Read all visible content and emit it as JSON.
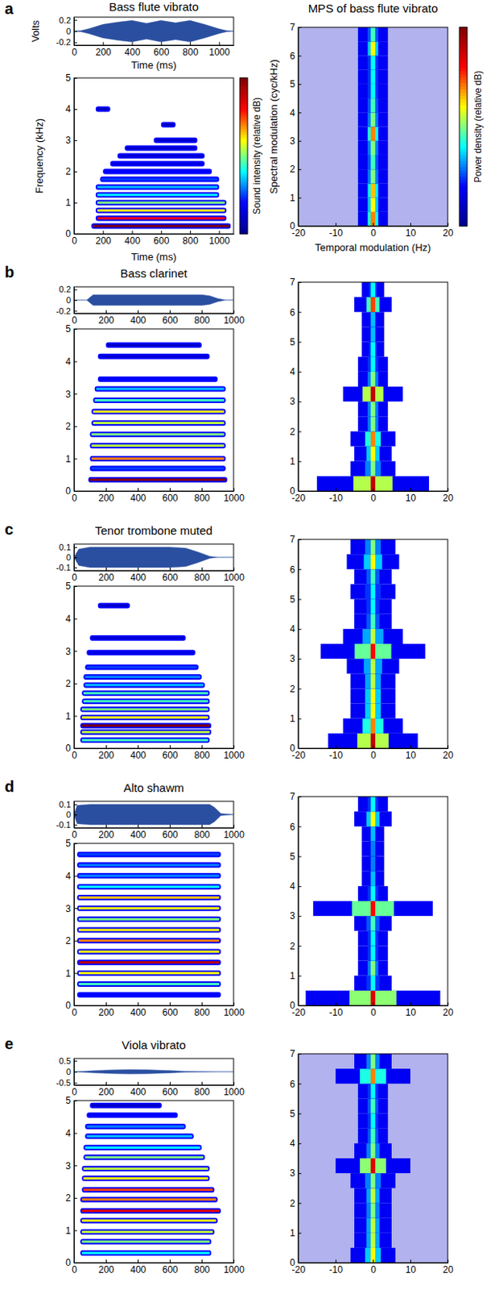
{
  "chart_data": [
    {
      "type": "waveform_spectrogram_mps",
      "letter": "a",
      "title": "Bass flute vibrato",
      "waveform": {
        "x": [
          0,
          50,
          100,
          200,
          300,
          400,
          500,
          600,
          700,
          800,
          900,
          1000,
          1050,
          1100
        ],
        "envelope": [
          0,
          0.01,
          0.04,
          0.12,
          0.16,
          0.19,
          0.14,
          0.19,
          0.15,
          0.19,
          0.12,
          0.04,
          0.01,
          0
        ],
        "xlim": [
          0,
          1100
        ],
        "xticks": [
          0,
          200,
          400,
          600,
          800,
          1000
        ],
        "ylim": [
          -0.25,
          0.25
        ],
        "yticks": [
          -0.2,
          0,
          0.2
        ],
        "ylabel": "Volts",
        "xlabel": "Time (ms)"
      },
      "spectrogram": {
        "xlim": [
          0,
          1100
        ],
        "xticks": [
          0,
          200,
          400,
          600,
          800,
          1000
        ],
        "ylim": [
          0,
          5
        ],
        "yticks": [
          0,
          1,
          2,
          3,
          4,
          5
        ],
        "ylabel": "Frequency (kHz)",
        "xlabel": "Time (ms)",
        "colorbar_label": "Sound intensity (relative dB)",
        "clim": [
          0,
          1
        ],
        "harmonics": {
          "freq": [
            0.25,
            0.5,
            0.75,
            1.0,
            1.25,
            1.5,
            1.75,
            2.0,
            2.25,
            2.5,
            2.75,
            3.0,
            3.5,
            4.0
          ],
          "start": [
            120,
            150,
            150,
            150,
            150,
            150,
            180,
            200,
            250,
            300,
            350,
            550,
            600,
            150
          ],
          "end": [
            1080,
            1050,
            1050,
            1050,
            1000,
            1000,
            1000,
            950,
            900,
            900,
            850,
            850,
            700,
            250
          ],
          "level": [
            1.0,
            0.8,
            0.6,
            0.5,
            0.4,
            0.35,
            0.25,
            0.2,
            0.15,
            0.12,
            0.1,
            0.1,
            0.08,
            0.08
          ]
        }
      },
      "mps": {
        "title": "MPS of bass flute vibrato",
        "xlim": [
          -20,
          20
        ],
        "xticks": [
          -20,
          -10,
          0,
          10,
          20
        ],
        "ylim": [
          0,
          7
        ],
        "yticks": [
          0,
          1,
          2,
          3,
          4,
          5,
          6,
          7
        ],
        "xlabel": "Temporal modulation (Hz)",
        "ylabel": "Spectral modulation (cyc/kHz)",
        "colorbar_label": "Power density (relative dB)",
        "clim": [
          0,
          1
        ],
        "background": 0.1,
        "spectral": [
          0.25,
          0.75,
          1.25,
          1.75,
          2.25,
          2.75,
          3.25,
          3.75,
          4.25,
          4.75,
          5.25,
          5.75,
          6.25,
          6.75
        ],
        "spread": [
          4,
          4,
          4,
          4,
          4,
          4,
          4,
          4,
          4,
          4,
          4,
          4,
          4,
          4
        ],
        "peak": [
          0.7,
          0.6,
          0.65,
          0.5,
          0.45,
          0.5,
          0.7,
          0.5,
          0.45,
          0.4,
          0.4,
          0.4,
          0.6,
          0.45
        ]
      }
    },
    {
      "type": "waveform_spectrogram_mps",
      "letter": "b",
      "title": "Bass clarinet",
      "waveform": {
        "x": [
          0,
          80,
          120,
          200,
          500,
          800,
          850,
          900,
          950,
          1000
        ],
        "envelope": [
          0,
          0,
          0.1,
          0.1,
          0.1,
          0.1,
          0.08,
          0.03,
          0,
          0
        ],
        "xlim": [
          0,
          1000
        ],
        "xticks": [
          0,
          200,
          400,
          600,
          800,
          1000
        ],
        "ylim": [
          -0.25,
          0.25
        ],
        "yticks": [
          -0.2,
          0,
          0.2
        ]
      },
      "spectrogram": {
        "xlim": [
          0,
          1000
        ],
        "xticks": [
          0,
          200,
          400,
          600,
          800,
          1000
        ],
        "ylim": [
          0,
          5
        ],
        "yticks": [
          0,
          1,
          2,
          3,
          4,
          5
        ],
        "clim": [
          0,
          1
        ],
        "harmonics": {
          "freq": [
            0.35,
            0.7,
            1.0,
            1.4,
            1.75,
            2.1,
            2.45,
            2.8,
            3.15,
            3.45,
            4.15,
            4.5
          ],
          "start": [
            90,
            100,
            100,
            100,
            100,
            110,
            110,
            120,
            130,
            150,
            150,
            200
          ],
          "end": [
            960,
            950,
            950,
            950,
            950,
            950,
            950,
            950,
            950,
            900,
            850,
            800
          ],
          "level": [
            1.0,
            0.25,
            0.7,
            0.55,
            0.5,
            0.55,
            0.6,
            0.45,
            0.35,
            0.2,
            0.12,
            0.1
          ]
        }
      },
      "mps": {
        "xlim": [
          -20,
          20
        ],
        "xticks": [
          -20,
          -10,
          0,
          10,
          20
        ],
        "ylim": [
          0,
          7
        ],
        "yticks": [
          0,
          1,
          2,
          3,
          4,
          5,
          6,
          7
        ],
        "clim": [
          0,
          1
        ],
        "background": 0,
        "spectral": [
          0.25,
          0.75,
          1.25,
          1.75,
          2.25,
          2.75,
          3.25,
          3.75,
          4.25,
          4.75,
          5.25,
          5.75,
          6.25,
          6.75
        ],
        "spread": [
          15,
          6,
          5,
          6,
          4,
          4,
          8,
          4,
          4,
          3,
          3,
          3,
          5,
          3
        ],
        "peak": [
          0.9,
          0.5,
          0.6,
          0.7,
          0.5,
          0.5,
          0.9,
          0.5,
          0.4,
          0.4,
          0.35,
          0.35,
          0.75,
          0.4
        ]
      }
    },
    {
      "type": "waveform_spectrogram_mps",
      "letter": "c",
      "title": "Tenor trombone muted",
      "waveform": {
        "x": [
          0,
          30,
          100,
          400,
          600,
          700,
          780,
          850,
          900,
          1000
        ],
        "envelope": [
          0,
          0.08,
          0.1,
          0.1,
          0.1,
          0.09,
          0.05,
          0.01,
          0,
          0
        ],
        "xlim": [
          0,
          1000
        ],
        "xticks": [
          0,
          200,
          400,
          600,
          800,
          1000
        ],
        "ylim": [
          -0.13,
          0.13
        ],
        "yticks": [
          -0.1,
          0,
          0.1
        ]
      },
      "spectrogram": {
        "xlim": [
          0,
          1000
        ],
        "xticks": [
          0,
          200,
          400,
          600,
          800,
          1000
        ],
        "ylim": [
          0,
          5
        ],
        "yticks": [
          0,
          1,
          2,
          3,
          4,
          5
        ],
        "clim": [
          0,
          1
        ],
        "harmonics": {
          "freq": [
            0.25,
            0.5,
            0.7,
            0.95,
            1.2,
            1.45,
            1.7,
            1.95,
            2.2,
            2.5,
            2.95,
            3.4,
            4.4
          ],
          "start": [
            40,
            40,
            40,
            40,
            40,
            50,
            50,
            60,
            60,
            70,
            80,
            100,
            150
          ],
          "end": [
            850,
            860,
            860,
            850,
            850,
            850,
            850,
            820,
            800,
            780,
            760,
            700,
            350
          ],
          "level": [
            0.45,
            0.55,
            1.0,
            0.6,
            0.5,
            0.45,
            0.45,
            0.35,
            0.3,
            0.25,
            0.15,
            0.12,
            0.1
          ]
        }
      },
      "mps": {
        "xlim": [
          -20,
          20
        ],
        "xticks": [
          -20,
          -10,
          0,
          10,
          20
        ],
        "ylim": [
          0,
          7
        ],
        "yticks": [
          0,
          1,
          2,
          3,
          4,
          5,
          6,
          7
        ],
        "clim": [
          0,
          1
        ],
        "background": 0,
        "spectral": [
          0.25,
          0.75,
          1.25,
          1.75,
          2.25,
          2.75,
          3.25,
          3.75,
          4.25,
          4.75,
          5.25,
          5.75,
          6.25,
          6.75
        ],
        "spread": [
          12,
          8,
          6,
          6,
          6,
          7,
          14,
          8,
          5,
          5,
          6,
          5,
          7,
          6
        ],
        "peak": [
          0.9,
          0.7,
          0.6,
          0.6,
          0.55,
          0.55,
          0.8,
          0.55,
          0.45,
          0.4,
          0.4,
          0.45,
          0.6,
          0.5
        ]
      }
    },
    {
      "type": "waveform_spectrogram_mps",
      "letter": "d",
      "title": "Alto shawm",
      "waveform": {
        "x": [
          0,
          20,
          100,
          500,
          850,
          880,
          920,
          1000
        ],
        "envelope": [
          0,
          0.09,
          0.1,
          0.1,
          0.1,
          0.07,
          0.01,
          0
        ],
        "xlim": [
          0,
          1000
        ],
        "xticks": [
          0,
          200,
          400,
          600,
          800,
          1000
        ],
        "ylim": [
          -0.13,
          0.13
        ],
        "yticks": [
          -0.1,
          0,
          0.1
        ]
      },
      "spectrogram": {
        "xlim": [
          0,
          1000
        ],
        "xticks": [
          0,
          200,
          400,
          600,
          800,
          1000
        ],
        "ylim": [
          0,
          5
        ],
        "yticks": [
          0,
          1,
          2,
          3,
          4,
          5
        ],
        "clim": [
          0,
          1
        ],
        "harmonics": {
          "freq": [
            0.33,
            0.66,
            1.0,
            1.33,
            1.66,
            2.0,
            2.33,
            2.66,
            3.0,
            3.33,
            3.66,
            4.0,
            4.33,
            4.66
          ],
          "start": [
            20,
            20,
            20,
            20,
            20,
            20,
            20,
            20,
            20,
            20,
            20,
            20,
            20,
            20
          ],
          "end": [
            920,
            920,
            920,
            920,
            920,
            920,
            920,
            920,
            920,
            920,
            920,
            920,
            920,
            920
          ],
          "level": [
            0.2,
            0.45,
            0.6,
            0.9,
            0.6,
            0.7,
            0.6,
            0.5,
            0.6,
            0.65,
            0.4,
            0.3,
            0.3,
            0.25
          ]
        }
      },
      "mps": {
        "xlim": [
          -20,
          20
        ],
        "xticks": [
          -20,
          -10,
          0,
          10,
          20
        ],
        "ylim": [
          0,
          7
        ],
        "yticks": [
          0,
          1,
          2,
          3,
          4,
          5,
          6,
          7
        ],
        "clim": [
          0,
          1
        ],
        "background": 0,
        "spectral": [
          0.25,
          0.75,
          1.25,
          1.75,
          2.25,
          2.75,
          3.25,
          3.75,
          4.25,
          4.75,
          5.25,
          5.75,
          6.25,
          6.75
        ],
        "spread": [
          18,
          5,
          4,
          4,
          4,
          5,
          16,
          4,
          3,
          3,
          3,
          3,
          5,
          4
        ],
        "peak": [
          0.85,
          0.4,
          0.5,
          0.4,
          0.4,
          0.45,
          0.8,
          0.4,
          0.35,
          0.3,
          0.3,
          0.35,
          0.6,
          0.4
        ]
      }
    },
    {
      "type": "waveform_spectrogram_mps",
      "letter": "e",
      "title": "Viola vibrato",
      "waveform": {
        "x": [
          0,
          50,
          200,
          350,
          450,
          600,
          700,
          800,
          900,
          1000
        ],
        "envelope": [
          0,
          0.02,
          0.07,
          0.1,
          0.09,
          0.05,
          0.02,
          0.005,
          0,
          0
        ],
        "xlim": [
          0,
          1000
        ],
        "xticks": [
          0,
          200,
          400,
          600,
          800,
          1000
        ],
        "ylim": [
          -0.6,
          0.6
        ],
        "yticks": [
          -0.5,
          0,
          0.5
        ]
      },
      "spectrogram": {
        "xlim": [
          0,
          1000
        ],
        "xticks": [
          0,
          200,
          400,
          600,
          800,
          1000
        ],
        "ylim": [
          0,
          5
        ],
        "yticks": [
          0,
          1,
          2,
          3,
          4,
          5
        ],
        "clim": [
          0,
          1
        ],
        "harmonics": {
          "freq": [
            0.3,
            0.65,
            0.95,
            1.3,
            1.6,
            1.95,
            2.25,
            2.6,
            2.9,
            3.25,
            3.55,
            3.9,
            4.2,
            4.55,
            4.85
          ],
          "start": [
            40,
            40,
            40,
            40,
            40,
            40,
            50,
            50,
            50,
            60,
            60,
            70,
            70,
            80,
            100
          ],
          "end": [
            860,
            860,
            880,
            900,
            920,
            900,
            880,
            850,
            850,
            820,
            800,
            750,
            700,
            650,
            550
          ],
          "level": [
            0.4,
            0.5,
            0.55,
            0.6,
            0.85,
            0.7,
            0.75,
            0.6,
            0.55,
            0.5,
            0.4,
            0.35,
            0.3,
            0.2,
            0.1
          ]
        }
      },
      "mps": {
        "xlim": [
          -20,
          20
        ],
        "xticks": [
          -20,
          -10,
          0,
          10,
          20
        ],
        "ylim": [
          0,
          7
        ],
        "yticks": [
          0,
          1,
          2,
          3,
          4,
          5,
          6,
          7
        ],
        "clim": [
          0,
          1
        ],
        "background": 0.1,
        "spectral": [
          0.25,
          0.75,
          1.25,
          1.75,
          2.25,
          2.75,
          3.25,
          3.75,
          4.25,
          4.75,
          5.25,
          5.75,
          6.25,
          6.75
        ],
        "spread": [
          6,
          5,
          5,
          5,
          5,
          6,
          10,
          5,
          4,
          4,
          4,
          4,
          10,
          5
        ],
        "peak": [
          0.6,
          0.55,
          0.55,
          0.5,
          0.55,
          0.5,
          0.85,
          0.5,
          0.45,
          0.4,
          0.45,
          0.4,
          0.7,
          0.5
        ]
      }
    }
  ]
}
